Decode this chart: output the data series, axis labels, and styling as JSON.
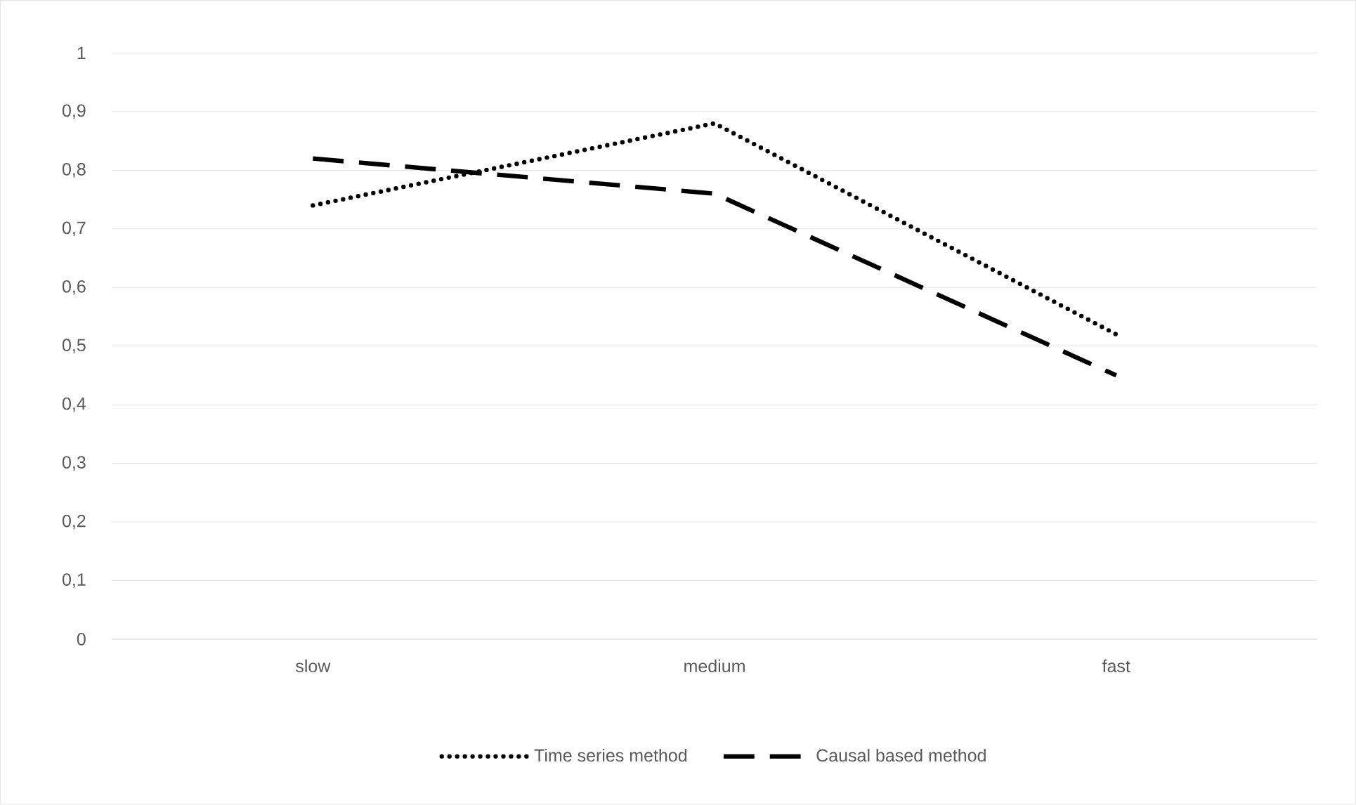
{
  "chart_data": {
    "type": "line",
    "categories": [
      "slow",
      "medium",
      "fast"
    ],
    "series": [
      {
        "name": "Time series method",
        "color": "#000000",
        "line_style": "dotted",
        "values": [
          0.74,
          0.88,
          0.52
        ]
      },
      {
        "name": "Causal based method",
        "color": "#000000",
        "line_style": "dashed",
        "values": [
          0.82,
          0.76,
          0.45
        ]
      }
    ],
    "ylim": [
      0,
      1
    ],
    "yticks": [
      0,
      {
        "value": 0.1,
        "label": "0,1"
      },
      {
        "value": 0.2,
        "label": "0,2"
      },
      {
        "value": 0.3,
        "label": "0,3"
      },
      {
        "value": 0.4,
        "label": "0,4"
      },
      {
        "value": 0.5,
        "label": "0,5"
      },
      {
        "value": 0.6,
        "label": "0,6"
      },
      {
        "value": 0.7,
        "label": "0,7"
      },
      {
        "value": 0.8,
        "label": "0,8"
      },
      {
        "value": 0.9,
        "label": "0,9"
      },
      1
    ],
    "grid": "y",
    "legend": "bottom",
    "marker": "none"
  }
}
